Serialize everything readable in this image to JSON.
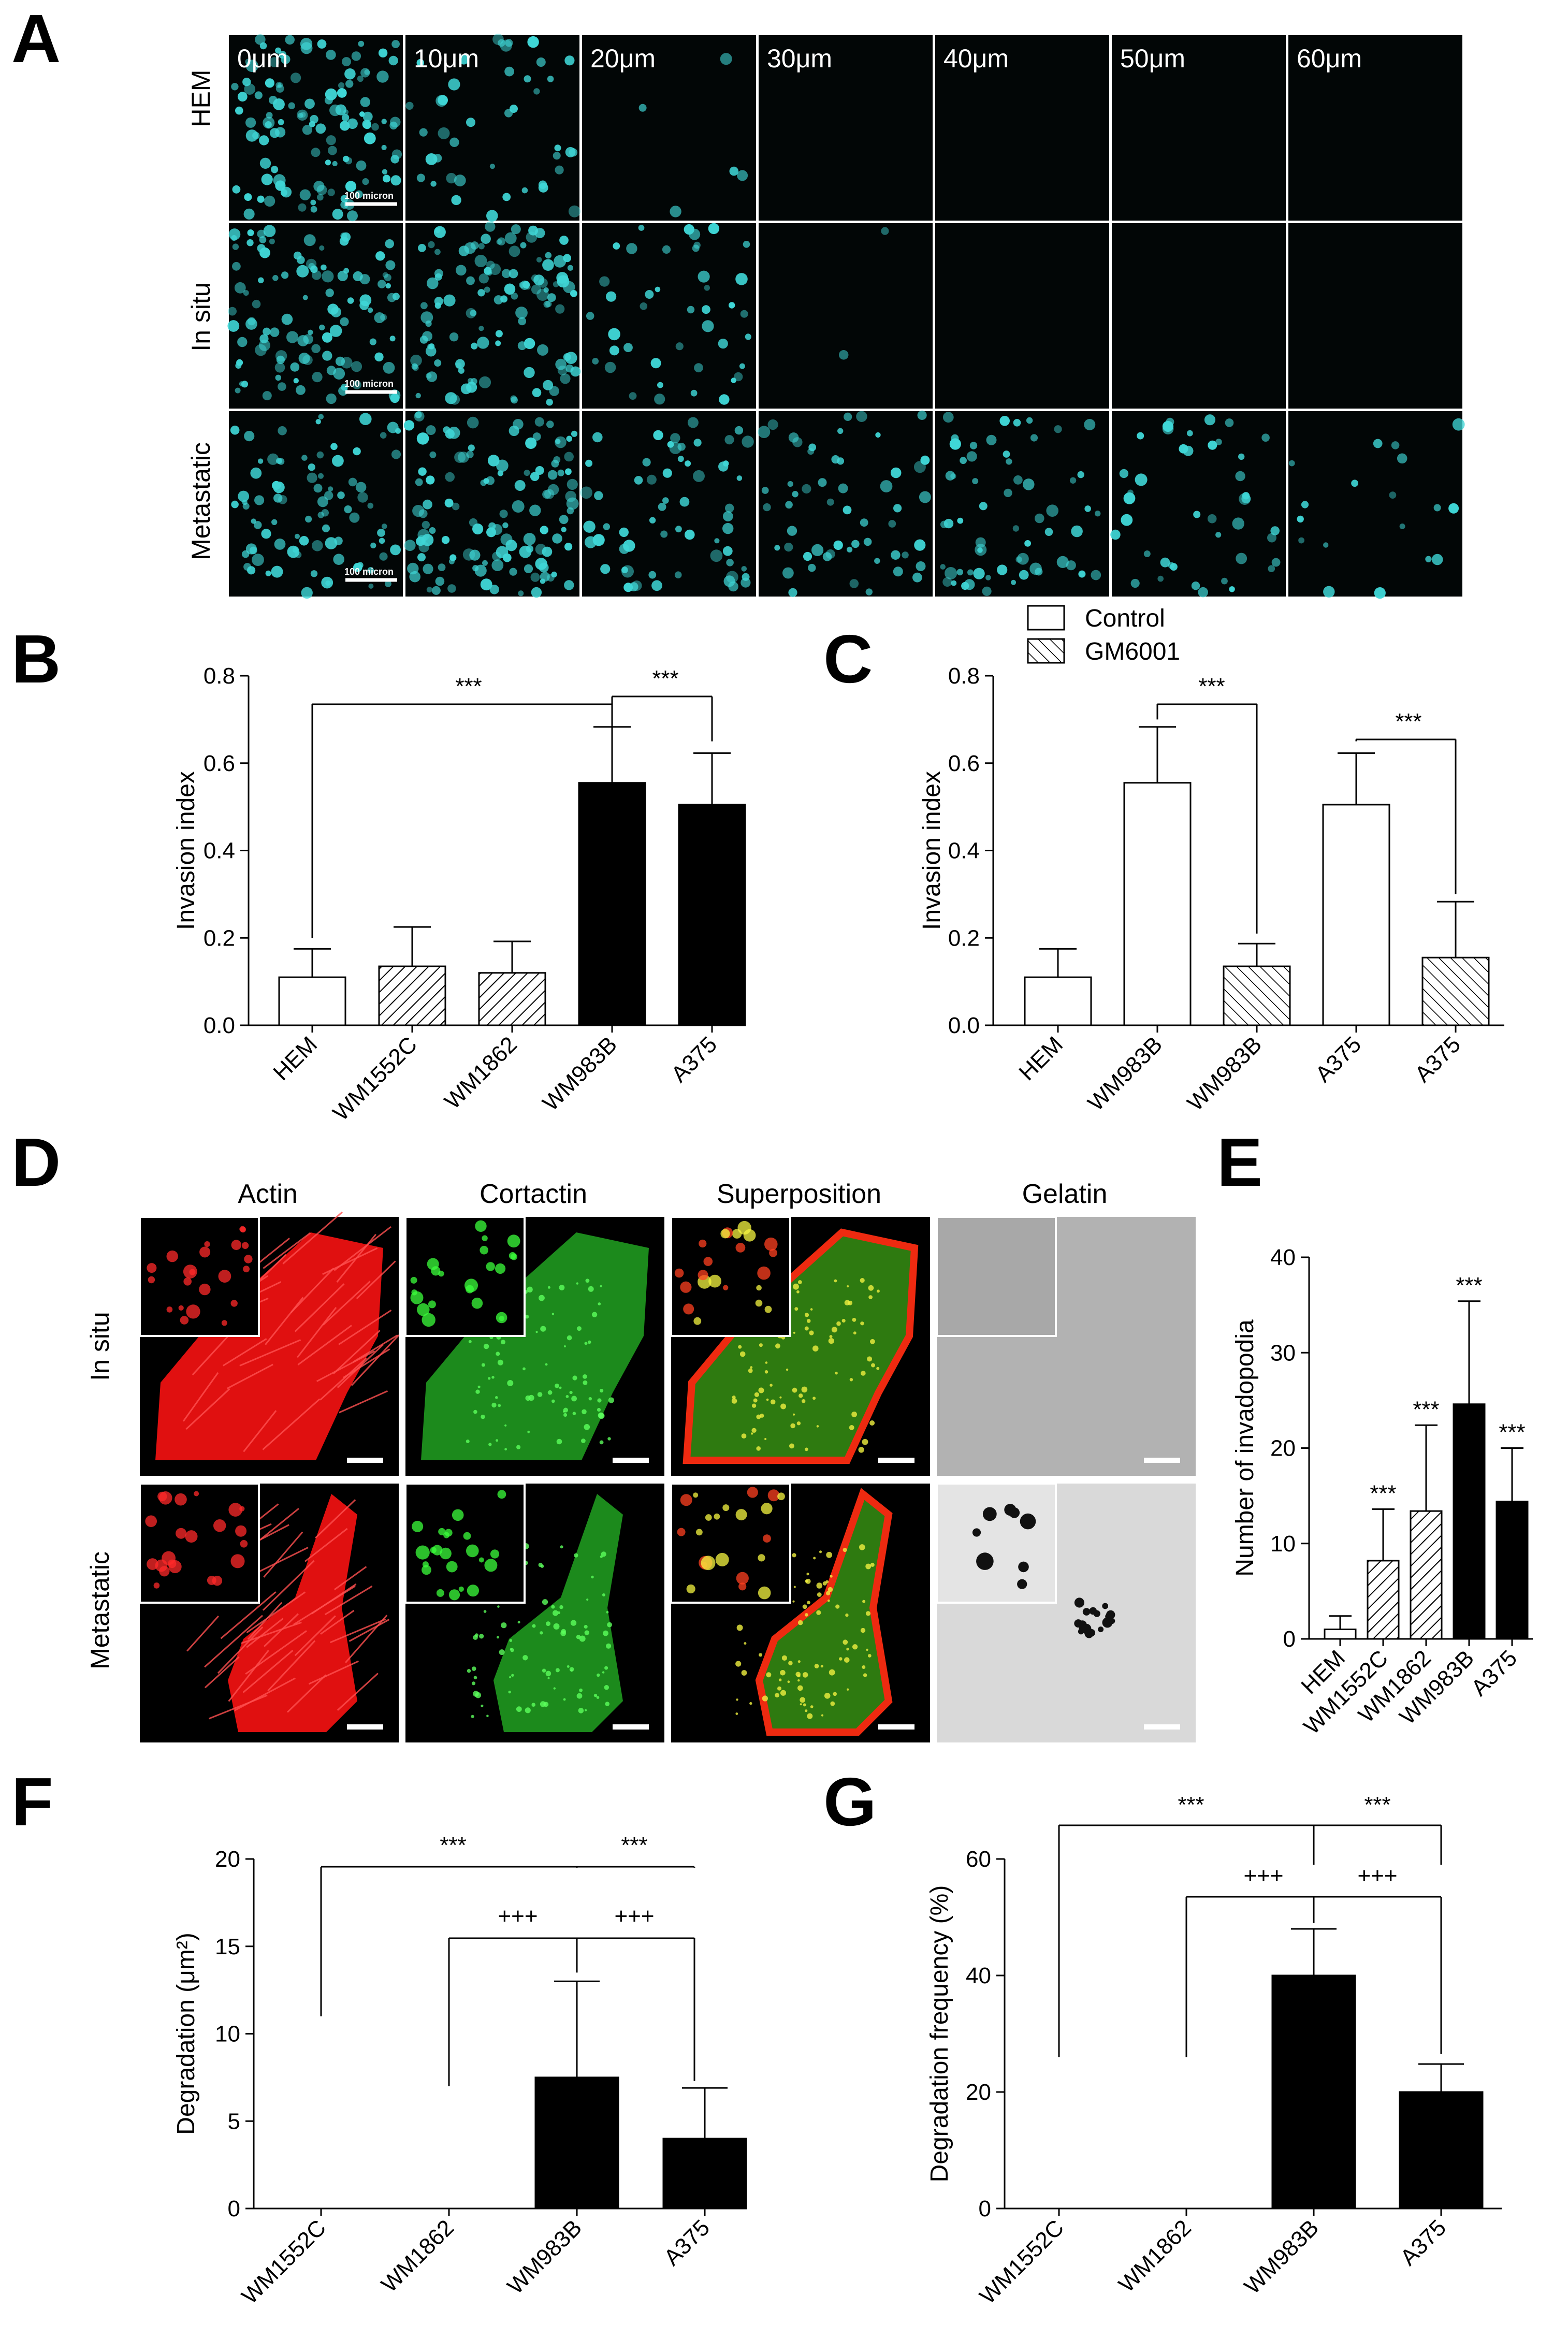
{
  "panel_labels": {
    "A": "A",
    "B": "B",
    "C": "C",
    "D": "D",
    "E": "E",
    "F": "F",
    "G": "G"
  },
  "panelA": {
    "depths": [
      "0μm",
      "10μm",
      "20μm",
      "30μm",
      "40μm",
      "50μm",
      "60μm"
    ],
    "rows": [
      "HEM",
      "In situ",
      "Metastatic"
    ],
    "scale_label": "100 micron",
    "cell_color": "#3fd6d6",
    "cell_density": [
      [
        1.0,
        0.35,
        0.04,
        0,
        0,
        0,
        0
      ],
      [
        0.9,
        1.0,
        0.35,
        0.02,
        0,
        0,
        0
      ],
      [
        0.7,
        1.0,
        0.5,
        0.45,
        0.5,
        0.35,
        0.15
      ]
    ]
  },
  "panelD": {
    "columns": [
      "Actin",
      "Cortactin",
      "Superposition",
      "Gelatin"
    ],
    "rows": [
      "In situ",
      "Metastatic"
    ]
  },
  "chart_data": [
    {
      "panel": "B",
      "type": "bar",
      "categories": [
        "HEM",
        "WM1552C",
        "WM1862",
        "WM983B",
        "A375"
      ],
      "values": [
        0.11,
        0.135,
        0.12,
        0.555,
        0.505
      ],
      "errors": [
        0.065,
        0.09,
        0.072,
        0.128,
        0.118
      ],
      "fills": [
        "white",
        "hatch",
        "hatch",
        "black",
        "black"
      ],
      "ylabel": "Invasion index",
      "ylim": [
        0,
        0.8
      ],
      "yticks": [
        "0.0",
        "0.2",
        "0.4",
        "0.6",
        "0.8"
      ],
      "significance": [
        "***",
        "***"
      ]
    },
    {
      "panel": "C",
      "type": "bar",
      "categories": [
        "HEM",
        "WM983B",
        "WM983B",
        "A375",
        "A375"
      ],
      "values": [
        0.11,
        0.555,
        0.135,
        0.505,
        0.155
      ],
      "errors": [
        0.065,
        0.128,
        0.052,
        0.118,
        0.128
      ],
      "fills": [
        "white",
        "white",
        "hatch",
        "white",
        "hatch"
      ],
      "ylabel": "Invasion index",
      "ylim": [
        0,
        0.8
      ],
      "yticks": [
        "0.0",
        "0.2",
        "0.4",
        "0.6",
        "0.8"
      ],
      "legend": [
        "Control",
        "GM6001"
      ],
      "significance": [
        "***",
        "***"
      ]
    },
    {
      "panel": "E",
      "type": "bar",
      "categories": [
        "HEM",
        "WM1552C",
        "WM1862",
        "WM983B",
        "A375"
      ],
      "values": [
        1.0,
        8.2,
        13.4,
        24.6,
        14.4
      ],
      "errors": [
        1.4,
        5.4,
        9.0,
        10.8,
        5.6
      ],
      "fills": [
        "white",
        "hatch",
        "hatch",
        "black",
        "black"
      ],
      "ylabel": "Number of invadopodia",
      "ylim": [
        0,
        40
      ],
      "yticks": [
        "0",
        "10",
        "20",
        "30",
        "40"
      ],
      "significance": [
        "***",
        "***",
        "***",
        "***"
      ]
    },
    {
      "panel": "F",
      "type": "bar",
      "categories": [
        "WM1552C",
        "WM1862",
        "WM983B",
        "A375"
      ],
      "values": [
        0,
        0,
        7.5,
        4.0
      ],
      "errors": [
        0,
        0,
        5.5,
        2.9
      ],
      "fills": [
        "black",
        "black",
        "black",
        "black"
      ],
      "ylabel": "Degradation (μm²)",
      "ylim": [
        0,
        20
      ],
      "yticks": [
        "0",
        "5",
        "10",
        "15",
        "20"
      ],
      "significance": [
        "***",
        "***",
        "+++",
        "+++"
      ]
    },
    {
      "panel": "G",
      "type": "bar",
      "categories": [
        "WM1552C",
        "WM1862",
        "WM983B",
        "A375"
      ],
      "values": [
        0,
        0,
        40.0,
        20.0
      ],
      "errors": [
        0,
        0,
        8.0,
        4.8
      ],
      "fills": [
        "black",
        "black",
        "black",
        "black"
      ],
      "ylabel": "Degradation frequency (%)",
      "ylim": [
        0,
        60
      ],
      "yticks": [
        "0",
        "20",
        "40",
        "60"
      ],
      "significance": [
        "***",
        "***",
        "+++",
        "+++"
      ]
    }
  ]
}
